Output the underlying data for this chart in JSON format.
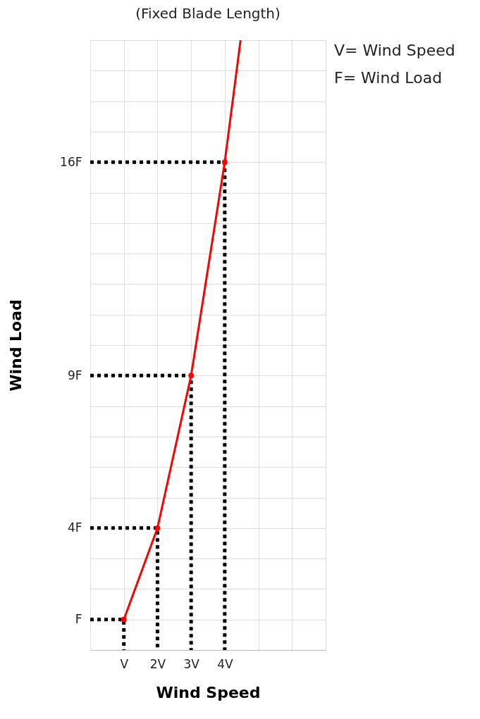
{
  "chart_data": {
    "type": "line",
    "title": "(Fixed Blade Length)",
    "xlabel": "Wind Speed",
    "ylabel": "Wind Load",
    "annotations": [
      "V= Wind Speed",
      "F= Wind Load"
    ],
    "xlim": [
      0,
      7
    ],
    "ylim": [
      0,
      20
    ],
    "xticks": [
      {
        "value": 0,
        "label": null
      },
      {
        "value": 1,
        "label": "V"
      },
      {
        "value": 2,
        "label": "2V"
      },
      {
        "value": 3,
        "label": "3V"
      },
      {
        "value": 4,
        "label": "4V"
      },
      {
        "value": 5,
        "label": null
      },
      {
        "value": 6,
        "label": null
      },
      {
        "value": 7,
        "label": null
      }
    ],
    "yticks": [
      {
        "value": 0,
        "label": null
      },
      {
        "value": 1,
        "label": "F"
      },
      {
        "value": 2,
        "label": null
      },
      {
        "value": 3,
        "label": null
      },
      {
        "value": 4,
        "label": "4F"
      },
      {
        "value": 5,
        "label": null
      },
      {
        "value": 6,
        "label": null
      },
      {
        "value": 7,
        "label": null
      },
      {
        "value": 8,
        "label": null
      },
      {
        "value": 9,
        "label": "9F"
      },
      {
        "value": 10,
        "label": null
      },
      {
        "value": 11,
        "label": null
      },
      {
        "value": 12,
        "label": null
      },
      {
        "value": 13,
        "label": null
      },
      {
        "value": 14,
        "label": null
      },
      {
        "value": 15,
        "label": null
      },
      {
        "value": 16,
        "label": "16F"
      },
      {
        "value": 17,
        "label": null
      },
      {
        "value": 18,
        "label": null
      },
      {
        "value": 19,
        "label": null
      },
      {
        "value": 20,
        "label": null
      }
    ],
    "grid": true,
    "series": [
      {
        "line_style": "dotted",
        "color": "#000000",
        "x": [
          0,
          1,
          1
        ],
        "values": [
          1,
          1,
          0
        ]
      },
      {
        "line_style": "dotted",
        "color": "#000000",
        "x": [
          0,
          2,
          2
        ],
        "values": [
          4,
          4,
          0
        ]
      },
      {
        "line_style": "dotted",
        "color": "#000000",
        "x": [
          0,
          3,
          3
        ],
        "values": [
          9,
          9,
          0
        ]
      },
      {
        "line_style": "dotted",
        "color": "#000000",
        "x": [
          0,
          4,
          4
        ],
        "values": [
          16,
          16,
          0
        ]
      },
      {
        "line_style": "solid",
        "color": "#ff0000",
        "x": [
          1,
          2,
          3,
          4,
          4.47
        ],
        "values": [
          1,
          4,
          9,
          16,
          20
        ]
      },
      {
        "type": "scatter",
        "marker": "circle",
        "color": "#ff0000",
        "x": [
          1,
          2,
          3,
          4
        ],
        "values": [
          1,
          4,
          9,
          16
        ]
      }
    ]
  }
}
